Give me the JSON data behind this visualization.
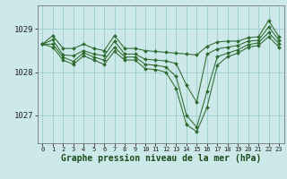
{
  "xlabel": "Graphe pression niveau de la mer (hPa)",
  "background_color": "#cce8e8",
  "grid_color": "#99cccc",
  "line_color": "#2d6a2d",
  "marker_color": "#2d6a2d",
  "hours": [
    0,
    1,
    2,
    3,
    4,
    5,
    6,
    7,
    8,
    9,
    10,
    11,
    12,
    13,
    14,
    15,
    16,
    17,
    18,
    19,
    20,
    21,
    22,
    23
  ],
  "series": [
    [
      1028.65,
      1028.85,
      1028.55,
      1028.55,
      1028.65,
      1028.55,
      1028.5,
      1028.85,
      1028.55,
      1028.55,
      1028.5,
      1028.48,
      1028.46,
      1028.44,
      1028.42,
      1028.4,
      1028.6,
      1028.7,
      1028.72,
      1028.72,
      1028.8,
      1028.82,
      1029.2,
      1028.82
    ],
    [
      1028.65,
      1028.75,
      1028.4,
      1028.38,
      1028.5,
      1028.42,
      1028.38,
      1028.72,
      1028.42,
      1028.42,
      1028.3,
      1028.28,
      1028.26,
      1028.2,
      1027.7,
      1027.3,
      1028.42,
      1028.54,
      1028.58,
      1028.62,
      1028.72,
      1028.74,
      1029.05,
      1028.74
    ],
    [
      1028.65,
      1028.65,
      1028.35,
      1028.25,
      1028.45,
      1028.35,
      1028.28,
      1028.58,
      1028.35,
      1028.35,
      1028.18,
      1028.16,
      1028.12,
      1027.9,
      1027.0,
      1026.72,
      1027.55,
      1028.36,
      1028.44,
      1028.52,
      1028.64,
      1028.68,
      1028.92,
      1028.66
    ],
    [
      1028.65,
      1028.58,
      1028.28,
      1028.18,
      1028.38,
      1028.28,
      1028.18,
      1028.48,
      1028.28,
      1028.28,
      1028.08,
      1028.06,
      1028.0,
      1027.62,
      1026.78,
      1026.62,
      1027.18,
      1028.16,
      1028.36,
      1028.44,
      1028.58,
      1028.62,
      1028.82,
      1028.58
    ]
  ],
  "ylim_min": 1026.35,
  "ylim_max": 1029.55,
  "yticks": [
    1027,
    1028,
    1029
  ],
  "ytick_labels": [
    "1027",
    "1028",
    "1029"
  ],
  "figsize": [
    3.2,
    2.0
  ],
  "dpi": 100
}
